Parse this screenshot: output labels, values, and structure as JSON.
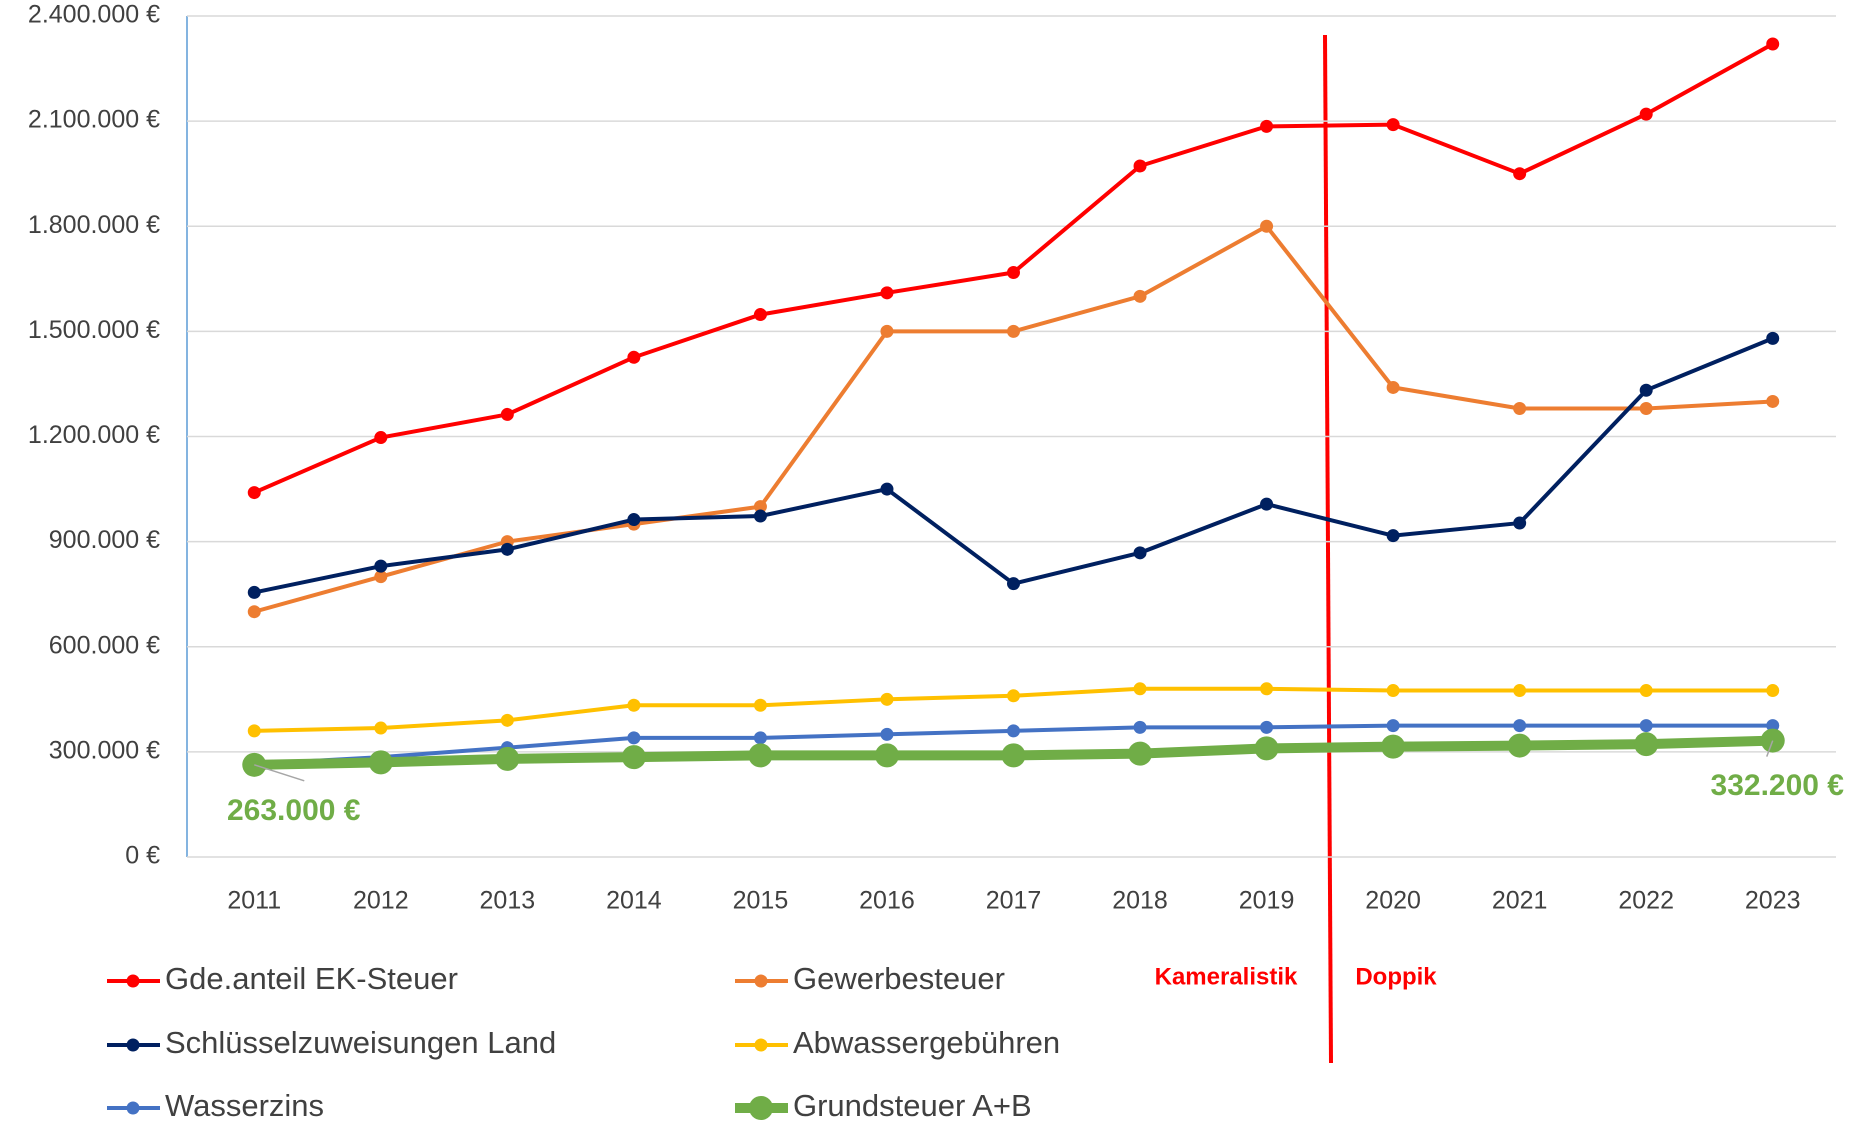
{
  "chart_data": {
    "type": "line",
    "categories": [
      "2011",
      "2012",
      "2013",
      "2014",
      "2015",
      "2016",
      "2017",
      "2018",
      "2019",
      "2020",
      "2021",
      "2022",
      "2023"
    ],
    "series": [
      {
        "name": "Gde.anteil EK-Steuer",
        "color": "#ff0000",
        "values": [
          1040000,
          1197000,
          1263000,
          1426000,
          1548000,
          1610000,
          1668000,
          1972000,
          2085000,
          2090000,
          1950000,
          2120000,
          2320000
        ]
      },
      {
        "name": "Gewerbesteuer",
        "color": "#ed7d31",
        "values": [
          700000,
          800000,
          900000,
          950000,
          1000000,
          1500000,
          1500000,
          1600000,
          1800000,
          1340000,
          1280000,
          1280000,
          1300000
        ]
      },
      {
        "name": "Schlüsselzuweisungen Land",
        "color": "#002060",
        "values": [
          755000,
          830000,
          878000,
          963000,
          973000,
          1050000,
          780000,
          868000,
          1007000,
          917000,
          953000,
          1332000,
          1480000
        ]
      },
      {
        "name": "Abwassergebühren",
        "color": "#ffc000",
        "values": [
          360000,
          368000,
          390000,
          433000,
          433000,
          450000,
          460000,
          480000,
          480000,
          475000,
          475000,
          475000,
          475000
        ]
      },
      {
        "name": "Wasserzins",
        "color": "#4472c4",
        "values": [
          265000,
          285000,
          312000,
          340000,
          340000,
          350000,
          360000,
          370000,
          370000,
          375000,
          375000,
          375000,
          375000
        ]
      },
      {
        "name": "Grundsteuer A+B",
        "color": "#70ad47",
        "values": [
          263000,
          270000,
          280000,
          285000,
          290000,
          290000,
          290000,
          295000,
          310000,
          315000,
          318000,
          322000,
          332200
        ],
        "value_labels": [
          "263.000 €",
          null,
          null,
          null,
          null,
          null,
          null,
          null,
          null,
          null,
          null,
          null,
          "332.200 €"
        ]
      }
    ],
    "ylim": [
      0,
      2400000
    ],
    "yticks": [
      {
        "value": 0,
        "label": "0 €"
      },
      {
        "value": 300000,
        "label": "300.000 €"
      },
      {
        "value": 600000,
        "label": "600.000 €"
      },
      {
        "value": 900000,
        "label": "900.000 €"
      },
      {
        "value": 1200000,
        "label": "1.200.000 €"
      },
      {
        "value": 1500000,
        "label": "1.500.000 €"
      },
      {
        "value": 1800000,
        "label": "1.800.000 €"
      },
      {
        "value": 2100000,
        "label": "2.100.000 €"
      },
      {
        "value": 2400000,
        "label": "2.400.000 €"
      }
    ],
    "grid": true,
    "annotations": [
      "Kameralistik",
      "Doppik"
    ]
  }
}
